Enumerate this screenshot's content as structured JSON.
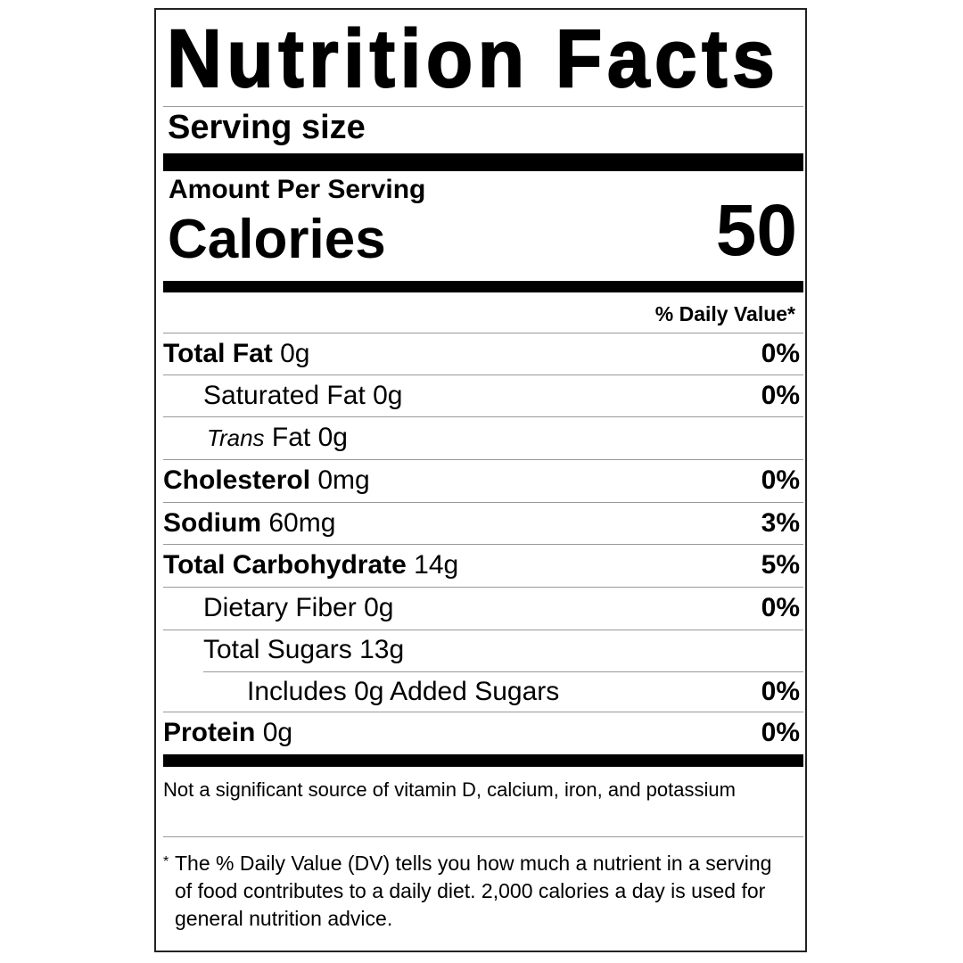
{
  "title": "Nutrition Facts",
  "serving_size_label": "Serving size",
  "amount_per_serving": "Amount Per Serving",
  "calories_label": "Calories",
  "calories_value": "50",
  "daily_value_header": "% Daily Value*",
  "nutrients": [
    {
      "name": "Total Fat",
      "amount": "0g",
      "dv": "0%",
      "bold": true,
      "indent": 0
    },
    {
      "name": "Saturated Fat",
      "amount": "0g",
      "dv": "0%",
      "bold": false,
      "indent": 1
    },
    {
      "name_italic": "Trans",
      "name": "Fat",
      "amount": "0g",
      "dv": "",
      "bold": false,
      "indent": 1
    },
    {
      "name": "Cholesterol",
      "amount": "0mg",
      "dv": "0%",
      "bold": true,
      "indent": 0
    },
    {
      "name": "Sodium",
      "amount": "60mg",
      "dv": "3%",
      "bold": true,
      "indent": 0
    },
    {
      "name": "Total Carbohydrate",
      "amount": "14g",
      "dv": "5%",
      "bold": true,
      "indent": 0
    },
    {
      "name": "Dietary Fiber",
      "amount": "0g",
      "dv": "0%",
      "bold": false,
      "indent": 1
    },
    {
      "name": "Total Sugars",
      "amount": "13g",
      "dv": "",
      "bold": false,
      "indent": 1
    },
    {
      "name": "Includes 0g Added Sugars",
      "amount": "",
      "dv": "0%",
      "bold": false,
      "indent": 2
    },
    {
      "name": "Protein",
      "amount": "0g",
      "dv": "0%",
      "bold": true,
      "indent": 0
    }
  ],
  "not_significant": "Not a significant source of vitamin D, calcium, iron, and potassium",
  "footnote_asterisk": "*",
  "footnote": "The % Daily Value (DV) tells you how much a nutrient in a serving of food contributes to a daily diet. 2,000 calories a day is used for general nutrition advice."
}
